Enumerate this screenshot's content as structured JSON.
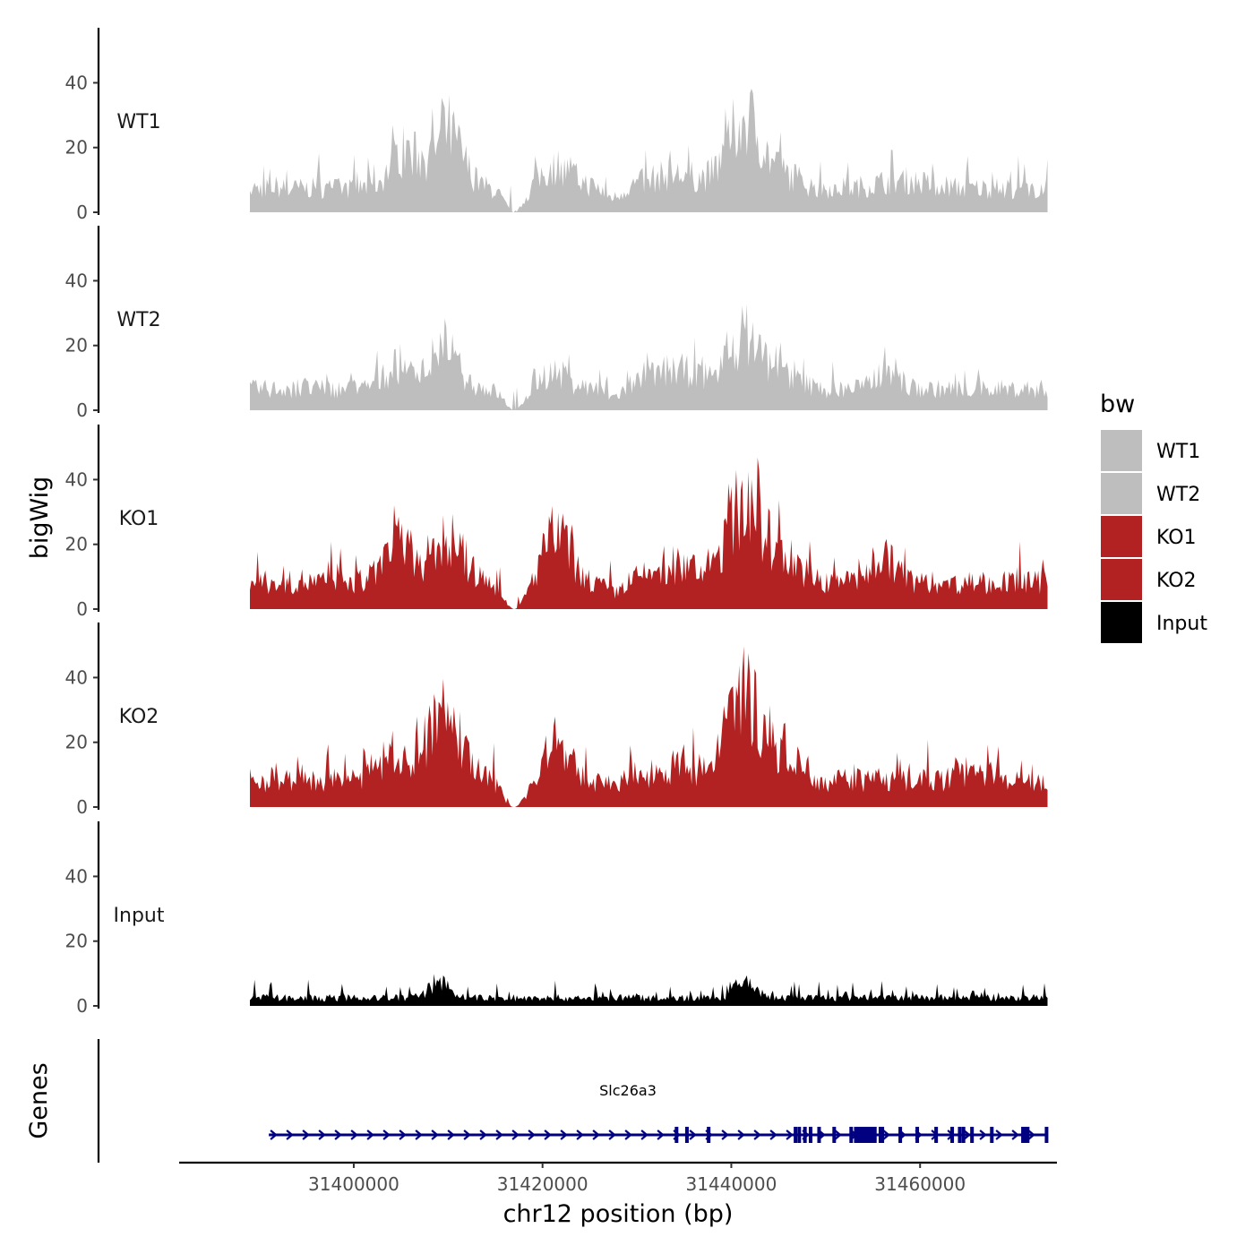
{
  "chart_data": {
    "type": "area",
    "y_axis_title": "bigWig",
    "x_axis_title": "chr12 position (bp)",
    "x_ticks": [
      31400000,
      31420000,
      31440000,
      31460000
    ],
    "x_tick_labels": [
      "31400000",
      "31420000",
      "31440000",
      "31460000"
    ],
    "x_data_range": [
      31389000,
      31473500
    ],
    "ylim": [
      0,
      57
    ],
    "y_ticks": [
      0,
      20,
      40
    ],
    "y_tick_labels": [
      "0",
      "20",
      "40"
    ],
    "legend": {
      "title": "bw",
      "position": "right",
      "entries": [
        {
          "label": "WT1",
          "color": "#bebebe"
        },
        {
          "label": "WT2",
          "color": "#bebebe"
        },
        {
          "label": "KO1",
          "color": "#b22222"
        },
        {
          "label": "KO2",
          "color": "#b22222"
        },
        {
          "label": "Input",
          "color": "#000000"
        }
      ]
    },
    "series": [
      {
        "name": "WT1",
        "color": "#bebebe",
        "base": 9,
        "noise": 9,
        "peaks": [
          {
            "center": 31405500,
            "height": 14,
            "width": 2200
          },
          {
            "center": 31410000,
            "height": 20,
            "width": 2200
          },
          {
            "center": 31421500,
            "height": 8,
            "width": 2500
          },
          {
            "center": 31434000,
            "height": 5,
            "width": 4000
          },
          {
            "center": 31441500,
            "height": 26,
            "width": 2600
          },
          {
            "center": 31446000,
            "height": 4,
            "width": 2000
          },
          {
            "center": 31458000,
            "height": 3,
            "width": 3500
          }
        ],
        "dips": [
          {
            "center": 31417000,
            "depth": 1.0,
            "width": 1400
          },
          {
            "center": 31427500,
            "depth": 0.4,
            "width": 1200
          }
        ]
      },
      {
        "name": "WT2",
        "color": "#bebebe",
        "base": 8,
        "noise": 8,
        "peaks": [
          {
            "center": 31404500,
            "height": 8,
            "width": 2000
          },
          {
            "center": 31409500,
            "height": 13,
            "width": 2300
          },
          {
            "center": 31421000,
            "height": 6,
            "width": 2500
          },
          {
            "center": 31434000,
            "height": 7,
            "width": 4000
          },
          {
            "center": 31441500,
            "height": 20,
            "width": 2600
          },
          {
            "center": 31446000,
            "height": 5,
            "width": 2000
          },
          {
            "center": 31456500,
            "height": 9,
            "width": 1500
          }
        ],
        "dips": [
          {
            "center": 31417000,
            "depth": 1.0,
            "width": 1400
          },
          {
            "center": 31427500,
            "depth": 0.4,
            "width": 1200
          }
        ]
      },
      {
        "name": "KO1",
        "color": "#b22222",
        "base": 10,
        "noise": 10,
        "peaks": [
          {
            "center": 31405000,
            "height": 14,
            "width": 2200
          },
          {
            "center": 31410000,
            "height": 16,
            "width": 2300
          },
          {
            "center": 31421500,
            "height": 18,
            "width": 2000
          },
          {
            "center": 31434000,
            "height": 6,
            "width": 3500
          },
          {
            "center": 31441500,
            "height": 30,
            "width": 2700
          },
          {
            "center": 31446000,
            "height": 8,
            "width": 2200
          },
          {
            "center": 31456000,
            "height": 10,
            "width": 1800
          }
        ],
        "dips": [
          {
            "center": 31417000,
            "depth": 1.0,
            "width": 1500
          },
          {
            "center": 31427500,
            "depth": 0.4,
            "width": 1200
          }
        ]
      },
      {
        "name": "KO2",
        "color": "#b22222",
        "base": 10,
        "noise": 10,
        "peaks": [
          {
            "center": 31404000,
            "height": 8,
            "width": 2500
          },
          {
            "center": 31409500,
            "height": 24,
            "width": 2600
          },
          {
            "center": 31421500,
            "height": 14,
            "width": 1800
          },
          {
            "center": 31434000,
            "height": 5,
            "width": 3500
          },
          {
            "center": 31441500,
            "height": 32,
            "width": 2500
          },
          {
            "center": 31446000,
            "height": 10,
            "width": 2200
          },
          {
            "center": 31466000,
            "height": 4,
            "width": 2500
          }
        ],
        "dips": [
          {
            "center": 31417000,
            "depth": 1.0,
            "width": 1600
          },
          {
            "center": 31427500,
            "depth": 0.3,
            "width": 1200
          }
        ]
      },
      {
        "name": "Input",
        "color": "#000000",
        "base": 3,
        "noise": 5,
        "peaks": [
          {
            "center": 31409000,
            "height": 6,
            "width": 1500
          },
          {
            "center": 31441500,
            "height": 6,
            "width": 1500
          }
        ],
        "dips": []
      }
    ],
    "gene_track": {
      "label": "Genes",
      "gene_name": "Slc26a3",
      "color": "#000080",
      "strand": "+",
      "start": 31391000,
      "end": 31473500,
      "exons": [
        31434200,
        31435300,
        31437600,
        31446800,
        31447200,
        31447800,
        31448400,
        31449300,
        31450900,
        31452700,
        31453200,
        31453700,
        31455800,
        31456000,
        31457900,
        31459700,
        31461700,
        31463400,
        31464200,
        31464600,
        31465500,
        31467600,
        31470900,
        31471100,
        31471400,
        31473400
      ]
    }
  }
}
